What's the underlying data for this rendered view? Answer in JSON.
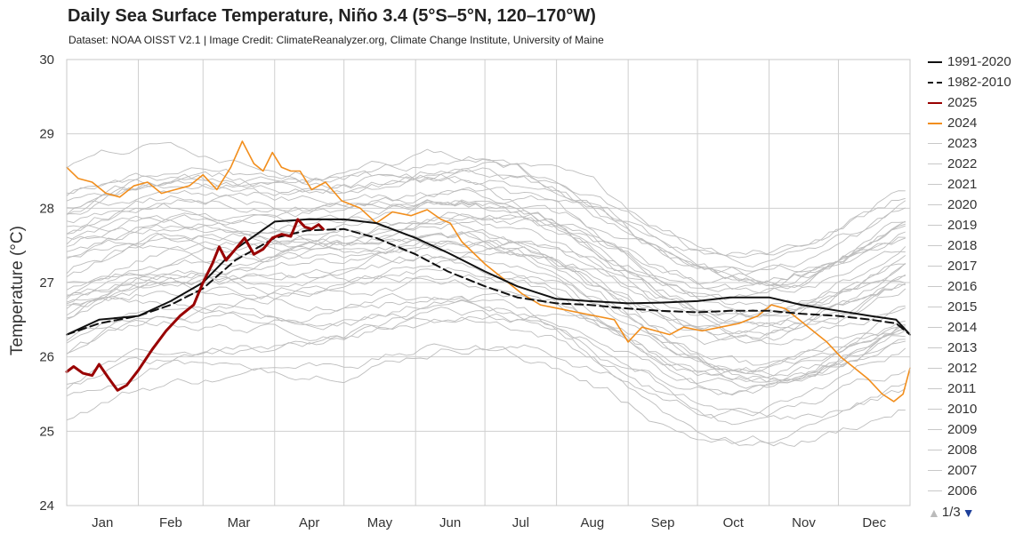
{
  "header": {
    "title": "Daily Sea Surface Temperature, Niño 3.4 (5°S–5°N, 120–170°W)",
    "subtitle": "Dataset: NOAA OISST V2.1 | Image Credit: ClimateReanalyzer.org, Climate Change Institute, University of Maine"
  },
  "legend": {
    "items": [
      {
        "label": "1991-2020",
        "color": "#111111",
        "style": "solid"
      },
      {
        "label": "1982-2010",
        "color": "#111111",
        "style": "dashed"
      },
      {
        "label": "2025",
        "color": "#990000",
        "style": "solid"
      },
      {
        "label": "2024",
        "color": "#f28e1c",
        "style": "solid"
      },
      {
        "label": "2023",
        "color": "#c8c8c8",
        "style": "solid"
      },
      {
        "label": "2022",
        "color": "#c8c8c8",
        "style": "solid"
      },
      {
        "label": "2021",
        "color": "#c8c8c8",
        "style": "solid"
      },
      {
        "label": "2020",
        "color": "#c8c8c8",
        "style": "solid"
      },
      {
        "label": "2019",
        "color": "#c8c8c8",
        "style": "solid"
      },
      {
        "label": "2018",
        "color": "#c8c8c8",
        "style": "solid"
      },
      {
        "label": "2017",
        "color": "#c8c8c8",
        "style": "solid"
      },
      {
        "label": "2016",
        "color": "#c8c8c8",
        "style": "solid"
      },
      {
        "label": "2015",
        "color": "#c8c8c8",
        "style": "solid"
      },
      {
        "label": "2014",
        "color": "#c8c8c8",
        "style": "solid"
      },
      {
        "label": "2013",
        "color": "#c8c8c8",
        "style": "solid"
      },
      {
        "label": "2012",
        "color": "#c8c8c8",
        "style": "solid"
      },
      {
        "label": "2011",
        "color": "#c8c8c8",
        "style": "solid"
      },
      {
        "label": "2010",
        "color": "#c8c8c8",
        "style": "solid"
      },
      {
        "label": "2009",
        "color": "#c8c8c8",
        "style": "solid"
      },
      {
        "label": "2008",
        "color": "#c8c8c8",
        "style": "solid"
      },
      {
        "label": "2007",
        "color": "#c8c8c8",
        "style": "solid"
      },
      {
        "label": "2006",
        "color": "#c8c8c8",
        "style": "solid"
      }
    ],
    "pager": {
      "text": "1/3",
      "up_icon": "triangle-up-icon",
      "down_icon": "triangle-down-icon"
    }
  },
  "chart_data": {
    "type": "line",
    "ylabel": "Temperature (°C)",
    "ylim": [
      24,
      30
    ],
    "yticks": [
      24,
      25,
      26,
      27,
      28,
      29,
      30
    ],
    "grid": true,
    "legend_position": "right",
    "month_labels": [
      "Jan",
      "Feb",
      "Mar",
      "Apr",
      "May",
      "Jun",
      "Jul",
      "Aug",
      "Sep",
      "Oct",
      "Nov",
      "Dec"
    ],
    "month_start_days": [
      1,
      32,
      60,
      91,
      121,
      152,
      182,
      213,
      244,
      274,
      305,
      335
    ],
    "xlim": [
      1,
      366
    ],
    "series": [
      {
        "name": "1991-2020",
        "color": "#111111",
        "style": "solid",
        "days": [
          1,
          15,
          32,
          46,
          60,
          74,
          91,
          105,
          121,
          135,
          152,
          166,
          182,
          196,
          213,
          227,
          244,
          258,
          274,
          288,
          305,
          319,
          335,
          349,
          360,
          366
        ],
        "values": [
          26.3,
          26.5,
          26.55,
          26.75,
          27.0,
          27.45,
          27.82,
          27.85,
          27.85,
          27.8,
          27.6,
          27.4,
          27.15,
          26.95,
          26.78,
          26.75,
          26.72,
          26.73,
          26.75,
          26.8,
          26.8,
          26.7,
          26.62,
          26.55,
          26.5,
          26.3
        ]
      },
      {
        "name": "1982-2010",
        "color": "#111111",
        "style": "dashed",
        "days": [
          1,
          15,
          32,
          46,
          60,
          74,
          91,
          105,
          121,
          135,
          152,
          166,
          182,
          196,
          213,
          227,
          244,
          258,
          274,
          288,
          305,
          319,
          335,
          349,
          360,
          366
        ],
        "values": [
          26.3,
          26.45,
          26.55,
          26.7,
          26.92,
          27.3,
          27.6,
          27.7,
          27.72,
          27.6,
          27.38,
          27.15,
          26.95,
          26.8,
          26.72,
          26.7,
          26.65,
          26.62,
          26.6,
          26.62,
          26.62,
          26.58,
          26.55,
          26.5,
          26.45,
          26.3
        ]
      },
      {
        "name": "2025",
        "color": "#990000",
        "style": "solid",
        "days": [
          1,
          4,
          8,
          12,
          15,
          19,
          23,
          27,
          32,
          38,
          44,
          50,
          56,
          60,
          64,
          67,
          70,
          74,
          78,
          82,
          86,
          90,
          94,
          98,
          101,
          104,
          107,
          110,
          112
        ],
        "values": [
          25.8,
          25.87,
          25.78,
          25.75,
          25.9,
          25.72,
          25.55,
          25.62,
          25.82,
          26.1,
          26.35,
          26.55,
          26.7,
          27.0,
          27.25,
          27.48,
          27.3,
          27.45,
          27.6,
          27.38,
          27.45,
          27.6,
          27.65,
          27.62,
          27.85,
          27.75,
          27.72,
          27.78,
          27.72
        ]
      },
      {
        "name": "2024",
        "color": "#f28e1c",
        "style": "solid",
        "days": [
          1,
          6,
          12,
          18,
          24,
          30,
          36,
          42,
          48,
          54,
          60,
          66,
          72,
          77,
          82,
          86,
          90,
          94,
          98,
          102,
          107,
          113,
          120,
          128,
          135,
          142,
          150,
          157,
          163,
          167,
          172,
          177,
          182,
          190,
          198,
          206,
          214,
          222,
          230,
          238,
          244,
          250,
          256,
          262,
          268,
          276,
          284,
          292,
          300,
          306,
          312,
          318,
          324,
          330,
          336,
          342,
          348,
          354,
          359,
          363,
          366
        ],
        "values": [
          28.55,
          28.4,
          28.35,
          28.2,
          28.15,
          28.3,
          28.35,
          28.2,
          28.25,
          28.3,
          28.45,
          28.25,
          28.55,
          28.9,
          28.6,
          28.5,
          28.75,
          28.55,
          28.5,
          28.5,
          28.25,
          28.35,
          28.1,
          28.0,
          27.8,
          27.95,
          27.9,
          27.98,
          27.85,
          27.8,
          27.55,
          27.4,
          27.25,
          27.05,
          26.85,
          26.7,
          26.65,
          26.6,
          26.55,
          26.5,
          26.2,
          26.4,
          26.35,
          26.3,
          26.4,
          26.35,
          26.4,
          26.45,
          26.55,
          26.7,
          26.65,
          26.5,
          26.35,
          26.2,
          26.0,
          25.85,
          25.7,
          25.5,
          25.4,
          25.5,
          25.85
        ]
      }
    ]
  }
}
